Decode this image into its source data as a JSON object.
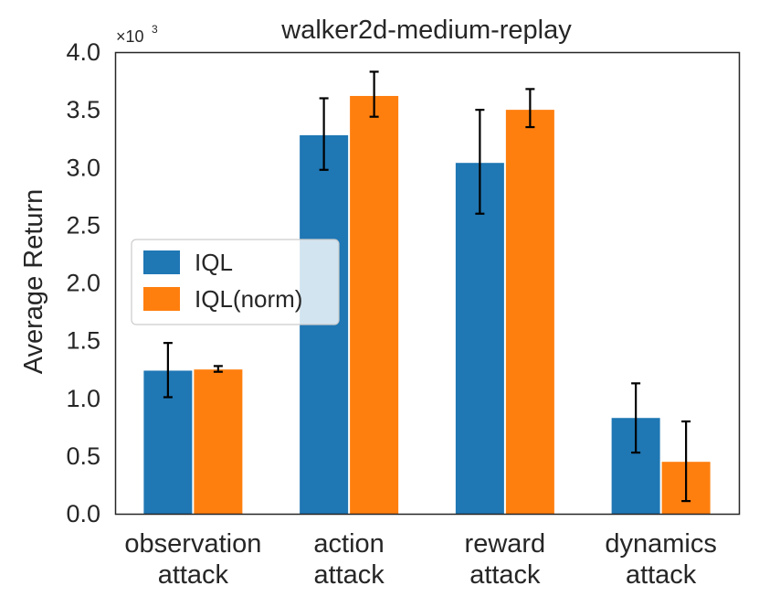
{
  "chart_data": {
    "type": "bar",
    "title": "walker2d-medium-replay",
    "ylabel": "Average Return",
    "xlabel": "",
    "scale_label": {
      "base": "×10",
      "exponent": "3"
    },
    "ylim": [
      0,
      4.0
    ],
    "yticks": [
      "0.0",
      "0.5",
      "1.0",
      "1.5",
      "2.0",
      "2.5",
      "3.0",
      "3.5",
      "4.0"
    ],
    "categories": [
      [
        "observation",
        "attack"
      ],
      [
        "action",
        "attack"
      ],
      [
        "reward",
        "attack"
      ],
      [
        "dynamics",
        "attack"
      ]
    ],
    "series": [
      {
        "name": "IQL",
        "color": "#1f77b4",
        "values": [
          1.24,
          3.28,
          3.04,
          0.83
        ],
        "err_low": [
          1.01,
          2.98,
          2.6,
          0.53
        ],
        "err_high": [
          1.48,
          3.6,
          3.5,
          1.13
        ]
      },
      {
        "name": "IQL(norm)",
        "color": "#ff7f0e",
        "values": [
          1.25,
          3.62,
          3.5,
          0.45
        ],
        "err_low": [
          1.23,
          3.44,
          3.35,
          0.11
        ],
        "err_high": [
          1.28,
          3.83,
          3.68,
          0.8
        ]
      }
    ],
    "legend": {
      "position": "center-left"
    },
    "grid": false
  }
}
